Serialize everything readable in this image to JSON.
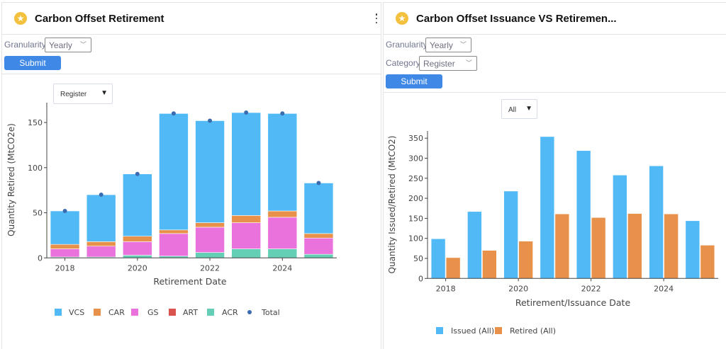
{
  "panels": {
    "left": {
      "title": "Carbon Offset Retirement",
      "icon": "star-icon",
      "granularity_label": "Granularity",
      "granularity_value": "Yearly",
      "submit_label": "Submit",
      "chart_dropdown_value": "Register",
      "dropdown_arrow": "▼"
    },
    "right": {
      "title": "Carbon Offset Issuance VS Retiremen...",
      "icon": "star-icon",
      "granularity_label": "Granularity",
      "granularity_value": "Yearly",
      "category_label": "Category",
      "category_value": "Register",
      "submit_label": "Submit",
      "chart_dropdown_value": "All",
      "dropdown_arrow": "▼"
    }
  },
  "colors": {
    "VCS": "#52b9f7",
    "CAR": "#e8914a",
    "GS": "#ea72dc",
    "ART": "#d9544f",
    "ACR": "#64cfb5",
    "Total": "#3a6db0",
    "Issued": "#52b9f7",
    "Retired": "#e8914a",
    "submit": "#3f88e5",
    "star": "#f4c13e"
  },
  "chart_data": [
    {
      "type": "bar",
      "stacked": true,
      "title": "Carbon Offset Retirement",
      "xlabel": "Retirement Date",
      "ylabel": "Quantity Retired (MtCO2e)",
      "x": [
        2018,
        2019,
        2020,
        2021,
        2022,
        2023,
        2024,
        2025
      ],
      "xticks": [
        "2018",
        "2020",
        "2022",
        "2024"
      ],
      "xtick_values": [
        2018,
        2020,
        2022,
        2024
      ],
      "yticks": [
        0,
        50,
        100,
        150
      ],
      "ylim": [
        0,
        172
      ],
      "xlim": [
        2017.5,
        2025.5
      ],
      "stack_order": [
        "ACR",
        "ART",
        "GS",
        "CAR",
        "VCS"
      ],
      "series": [
        {
          "name": "VCS",
          "values": [
            37,
            52,
            69,
            129,
            113,
            114,
            108,
            56
          ]
        },
        {
          "name": "CAR",
          "values": [
            5,
            5,
            6,
            4,
            5,
            8,
            7,
            5
          ]
        },
        {
          "name": "GS",
          "values": [
            9,
            12,
            15,
            25,
            28,
            29,
            35,
            18
          ]
        },
        {
          "name": "ART",
          "values": [
            0,
            0,
            0,
            0,
            0,
            0,
            0,
            0
          ]
        },
        {
          "name": "ACR",
          "values": [
            1,
            1,
            3,
            2,
            6,
            10,
            10,
            4
          ]
        }
      ],
      "total": {
        "name": "Total",
        "values": [
          52,
          70,
          93,
          160,
          152,
          161,
          160,
          83
        ]
      },
      "legend": [
        "VCS",
        "CAR",
        "GS",
        "ART",
        "ACR",
        "Total"
      ],
      "legend_position": "bottom",
      "grid": false
    },
    {
      "type": "bar",
      "stacked": false,
      "title": "Carbon Offset Issuance VS Retirement",
      "xlabel": "Retirement/Issuance Date",
      "ylabel": "Quantity Issued/Retired (MtCO2)",
      "x": [
        2018,
        2019,
        2020,
        2021,
        2022,
        2023,
        2024,
        2025
      ],
      "xticks": [
        "2018",
        "2020",
        "2022",
        "2024"
      ],
      "xtick_values": [
        2018,
        2020,
        2022,
        2024
      ],
      "yticks": [
        0,
        50,
        100,
        150,
        200,
        250,
        300,
        350
      ],
      "ylim": [
        0,
        368
      ],
      "xlim": [
        2017.5,
        2025.5
      ],
      "series": [
        {
          "name": "Issued (All)",
          "key": "Issued",
          "values": [
            99,
            167,
            218,
            354,
            319,
            258,
            281,
            144
          ]
        },
        {
          "name": "Retired (All)",
          "key": "Retired",
          "values": [
            52,
            70,
            93,
            161,
            152,
            162,
            161,
            83
          ]
        }
      ],
      "legend": [
        "Issued (All)",
        "Retired (All)"
      ],
      "legend_position": "bottom",
      "grid": false
    }
  ]
}
